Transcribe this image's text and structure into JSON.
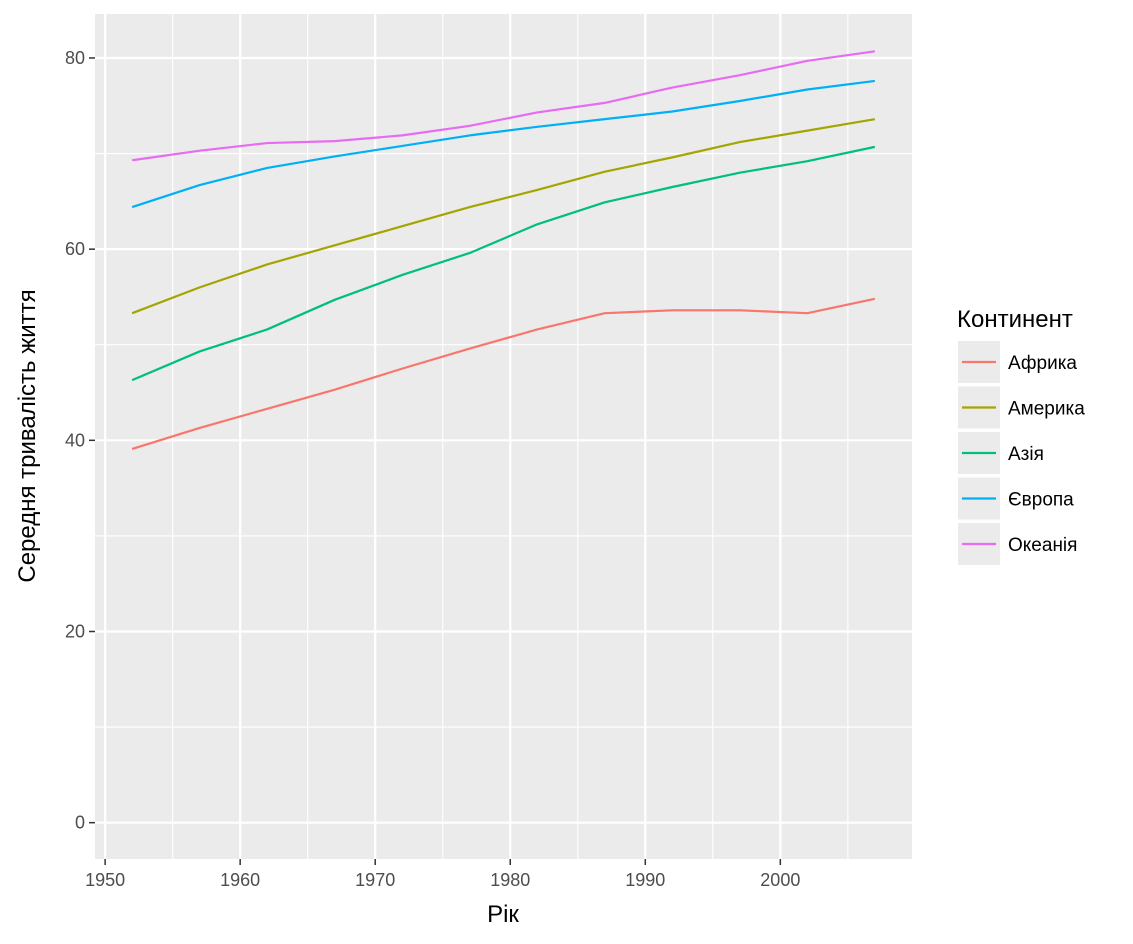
{
  "chart_data": {
    "type": "line",
    "xlabel": "Рік",
    "ylabel": "Середня тривалість життя",
    "xlim": [
      1949.25,
      2009.75
    ],
    "ylim": [
      -3.8,
      84.6
    ],
    "x_ticks": [
      1950,
      1960,
      1970,
      1980,
      1990,
      2000
    ],
    "y_ticks": [
      0,
      20,
      40,
      60,
      80
    ],
    "grid": true,
    "legend_position": "right",
    "legend_title": "Континент",
    "x": [
      1952,
      1957,
      1962,
      1967,
      1972,
      1977,
      1982,
      1987,
      1992,
      1997,
      2002,
      2007
    ],
    "series": [
      {
        "name": "Африка",
        "color": "#F8766D",
        "values": [
          39.1,
          41.3,
          43.3,
          45.3,
          47.5,
          49.6,
          51.6,
          53.3,
          53.6,
          53.6,
          53.3,
          54.8
        ]
      },
      {
        "name": "Америка",
        "color": "#A3A500",
        "values": [
          53.3,
          56.0,
          58.4,
          60.4,
          62.4,
          64.4,
          66.2,
          68.1,
          69.6,
          71.2,
          72.4,
          73.6
        ]
      },
      {
        "name": "Азія",
        "color": "#00BF7D",
        "values": [
          46.3,
          49.3,
          51.6,
          54.7,
          57.3,
          59.6,
          62.6,
          64.9,
          66.5,
          68.0,
          69.2,
          70.7
        ]
      },
      {
        "name": "Європа",
        "color": "#00B0F6",
        "values": [
          64.4,
          66.7,
          68.5,
          69.7,
          70.8,
          71.9,
          72.8,
          73.6,
          74.4,
          75.5,
          76.7,
          77.6
        ]
      },
      {
        "name": "Океанія",
        "color": "#E76BF3",
        "values": [
          69.3,
          70.3,
          71.1,
          71.3,
          71.9,
          72.9,
          74.3,
          75.3,
          76.9,
          78.2,
          79.7,
          80.7
        ]
      }
    ]
  },
  "colors": {
    "panel_background": "#EBEBEB",
    "grid_line": "#FFFFFF",
    "tick_mark": "#333333"
  }
}
